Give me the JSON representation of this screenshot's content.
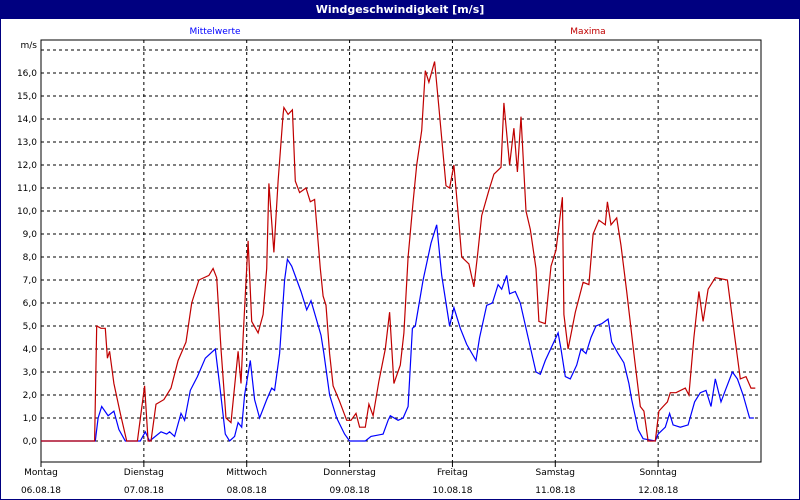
{
  "window": {
    "title": "Windgeschwindigkeit [m/s]"
  },
  "chart_data": {
    "type": "line",
    "title": "Windgeschwindigkeit [m/s]",
    "ylabel": "m/s",
    "ylim": [
      -0.9,
      17.5
    ],
    "yticks": [
      "0,0",
      "1,0",
      "2,0",
      "3,0",
      "4,0",
      "5,0",
      "6,0",
      "7,0",
      "8,0",
      "9,0",
      "10,0",
      "11,0",
      "12,0",
      "13,0",
      "14,0",
      "15,0",
      "16,0"
    ],
    "xlim": [
      "06.08.18 00:00",
      "13.08.18 00:00"
    ],
    "xticks": [
      {
        "day": "Montag",
        "date": "06.08.18"
      },
      {
        "day": "Dienstag",
        "date": "07.08.18"
      },
      {
        "day": "Mittwoch",
        "date": "08.08.18"
      },
      {
        "day": "Donnerstag",
        "date": "09.08.18"
      },
      {
        "day": "Freitag",
        "date": "10.08.18"
      },
      {
        "day": "Samstag",
        "date": "11.08.18"
      },
      {
        "day": "Sonntag",
        "date": "12.08.18"
      }
    ],
    "grid": true,
    "legend_placement": "top",
    "series": [
      {
        "name": "Mittelwerte",
        "color": "#0000ff",
        "points": [
          [
            "06.08.18 00:00",
            0
          ],
          [
            "06.08.18 12:40",
            0
          ],
          [
            "06.08.18 13:20",
            1.0
          ],
          [
            "06.08.18 14:10",
            1.5
          ],
          [
            "06.08.18 15:40",
            1.1
          ],
          [
            "06.08.18 17:00",
            1.3
          ],
          [
            "06.08.18 18:10",
            0.5
          ],
          [
            "06.08.18 19:40",
            0
          ],
          [
            "06.08.18 23:10",
            0
          ],
          [
            "07.08.18 00:20",
            0.4
          ],
          [
            "07.08.18 01:20",
            0
          ],
          [
            "07.08.18 04:00",
            0.4
          ],
          [
            "07.08.18 05:20",
            0.3
          ],
          [
            "07.08.18 06:00",
            0.4
          ],
          [
            "07.08.18 07:10",
            0.2
          ],
          [
            "07.08.18 08:40",
            1.2
          ],
          [
            "07.08.18 09:30",
            0.9
          ],
          [
            "07.08.18 10:50",
            2.2
          ],
          [
            "07.08.18 12:30",
            2.8
          ],
          [
            "07.08.18 14:20",
            3.6
          ],
          [
            "07.08.18 16:40",
            4.0
          ],
          [
            "07.08.18 17:50",
            2.2
          ],
          [
            "07.08.18 19:00",
            0.3
          ],
          [
            "07.08.18 20:00",
            0
          ],
          [
            "07.08.18 21:10",
            0.2
          ],
          [
            "07.08.18 22:00",
            0.8
          ],
          [
            "07.08.18 22:50",
            0.6
          ],
          [
            "07.08.18 23:30",
            2.0
          ],
          [
            "08.08.18 00:50",
            3.5
          ],
          [
            "08.08.18 01:50",
            1.8
          ],
          [
            "08.08.18 03:00",
            1.0
          ],
          [
            "08.08.18 04:40",
            1.8
          ],
          [
            "08.08.18 05:50",
            2.3
          ],
          [
            "08.08.18 06:30",
            2.2
          ],
          [
            "08.08.18 07:40",
            3.8
          ],
          [
            "08.08.18 08:50",
            7.0
          ],
          [
            "08.08.18 09:30",
            7.9
          ],
          [
            "08.08.18 10:30",
            7.6
          ],
          [
            "08.08.18 12:40",
            6.5
          ],
          [
            "08.08.18 14:00",
            5.7
          ],
          [
            "08.08.18 15:00",
            6.1
          ],
          [
            "08.08.18 17:20",
            4.6
          ],
          [
            "08.08.18 18:00",
            3.8
          ],
          [
            "08.08.18 19:20",
            2.0
          ],
          [
            "08.08.18 21:00",
            1.0
          ],
          [
            "08.08.18 22:50",
            0.3
          ],
          [
            "09.08.18 00:00",
            0
          ],
          [
            "09.08.18 03:40",
            0
          ],
          [
            "09.08.18 05:00",
            0.2
          ],
          [
            "09.08.18 07:50",
            0.3
          ],
          [
            "09.08.18 09:00",
            0.9
          ],
          [
            "09.08.18 09:30",
            1.1
          ],
          [
            "09.08.18 11:20",
            0.9
          ],
          [
            "09.08.18 12:30",
            1.0
          ],
          [
            "09.08.18 13:40",
            1.5
          ],
          [
            "09.08.18 14:40",
            4.9
          ],
          [
            "09.08.18 15:20",
            5.0
          ],
          [
            "09.08.18 17:10",
            7.0
          ],
          [
            "09.08.18 19:00",
            8.6
          ],
          [
            "09.08.18 20:20",
            9.4
          ],
          [
            "09.08.18 21:30",
            7.2
          ],
          [
            "09.08.18 22:30",
            6.0
          ],
          [
            "09.08.18 23:20",
            5.0
          ],
          [
            "10.08.18 00:20",
            5.8
          ],
          [
            "10.08.18 01:50",
            4.9
          ],
          [
            "10.08.18 03:20",
            4.2
          ],
          [
            "10.08.18 05:30",
            3.5
          ],
          [
            "10.08.18 06:20",
            4.5
          ],
          [
            "10.08.18 08:00",
            5.9
          ],
          [
            "10.08.18 09:20",
            6.0
          ],
          [
            "10.08.18 10:40",
            6.8
          ],
          [
            "10.08.18 11:30",
            6.6
          ],
          [
            "10.08.18 12:40",
            7.2
          ],
          [
            "10.08.18 13:20",
            6.4
          ],
          [
            "10.08.18 14:40",
            6.5
          ],
          [
            "10.08.18 15:50",
            6.0
          ],
          [
            "10.08.18 17:40",
            4.5
          ],
          [
            "10.08.18 19:30",
            3.0
          ],
          [
            "10.08.18 20:30",
            2.9
          ],
          [
            "10.08.18 21:40",
            3.5
          ],
          [
            "11.08.18 00:40",
            4.7
          ],
          [
            "11.08.18 01:20",
            4.0
          ],
          [
            "11.08.18 02:20",
            2.8
          ],
          [
            "11.08.18 03:30",
            2.7
          ],
          [
            "11.08.18 05:00",
            3.3
          ],
          [
            "11.08.18 06:00",
            4.0
          ],
          [
            "11.08.18 07:10",
            3.8
          ],
          [
            "11.08.18 08:20",
            4.5
          ],
          [
            "11.08.18 09:30",
            5.0
          ],
          [
            "11.08.18 10:50",
            5.1
          ],
          [
            "11.08.18 12:20",
            5.3
          ],
          [
            "11.08.18 13:10",
            4.3
          ],
          [
            "11.08.18 14:40",
            3.8
          ],
          [
            "11.08.18 16:00",
            3.4
          ],
          [
            "11.08.18 17:10",
            2.5
          ],
          [
            "11.08.18 17:50",
            1.8
          ],
          [
            "11.08.18 19:20",
            0.5
          ],
          [
            "11.08.18 20:30",
            0.1
          ],
          [
            "11.08.18 23:20",
            0
          ],
          [
            "12.08.18 00:00",
            0.3
          ],
          [
            "12.08.18 01:40",
            0.6
          ],
          [
            "12.08.18 02:40",
            1.2
          ],
          [
            "12.08.18 03:30",
            0.7
          ],
          [
            "12.08.18 05:10",
            0.6
          ],
          [
            "12.08.18 07:00",
            0.7
          ],
          [
            "12.08.18 08:30",
            1.7
          ],
          [
            "12.08.18 09:50",
            2.1
          ],
          [
            "12.08.18 11:10",
            2.2
          ],
          [
            "12.08.18 12:20",
            1.5
          ],
          [
            "12.08.18 13:20",
            2.7
          ],
          [
            "12.08.18 14:40",
            1.7
          ],
          [
            "12.08.18 15:40",
            2.2
          ],
          [
            "12.08.18 17:20",
            3.0
          ],
          [
            "12.08.18 18:30",
            2.7
          ],
          [
            "12.08.18 19:50",
            2.0
          ],
          [
            "12.08.18 21:20",
            1.0
          ],
          [
            "12.08.18 22:20",
            1.0
          ]
        ]
      },
      {
        "name": "Maxima",
        "color": "#c00000",
        "points": [
          [
            "06.08.18 00:00",
            0
          ],
          [
            "06.08.18 12:30",
            0
          ],
          [
            "06.08.18 13:00",
            5.0
          ],
          [
            "06.08.18 14:00",
            4.9
          ],
          [
            "06.08.18 15:00",
            4.9
          ],
          [
            "06.08.18 15:30",
            3.6
          ],
          [
            "06.08.18 16:00",
            3.9
          ],
          [
            "06.08.18 17:00",
            2.5
          ],
          [
            "06.08.18 18:30",
            1.2
          ],
          [
            "06.08.18 20:00",
            0
          ],
          [
            "06.08.18 22:30",
            0
          ],
          [
            "07.08.18 00:10",
            2.4
          ],
          [
            "07.08.18 01:00",
            0
          ],
          [
            "07.08.18 01:40",
            0
          ],
          [
            "07.08.18 02:50",
            1.6
          ],
          [
            "07.08.18 04:40",
            1.8
          ],
          [
            "07.08.18 06:20",
            2.3
          ],
          [
            "07.08.18 08:00",
            3.5
          ],
          [
            "07.08.18 09:50",
            4.3
          ],
          [
            "07.08.18 11:10",
            6.0
          ],
          [
            "07.08.18 12:50",
            7.0
          ],
          [
            "07.08.18 15:10",
            7.2
          ],
          [
            "07.08.18 16:10",
            7.5
          ],
          [
            "07.08.18 17:00",
            7.1
          ],
          [
            "07.08.18 18:00",
            4.0
          ],
          [
            "07.08.18 19:10",
            1.0
          ],
          [
            "07.08.18 20:20",
            0.8
          ],
          [
            "07.08.18 22:00",
            3.9
          ],
          [
            "07.08.18 22:40",
            2.5
          ],
          [
            "07.08.18 23:10",
            4.5
          ],
          [
            "08.08.18 00:20",
            8.7
          ],
          [
            "08.08.18 01:10",
            5.2
          ],
          [
            "08.08.18 02:40",
            4.7
          ],
          [
            "08.08.18 03:50",
            5.5
          ],
          [
            "08.08.18 04:40",
            7.5
          ],
          [
            "08.08.18 05:10",
            11.2
          ],
          [
            "08.08.18 06:20",
            8.2
          ],
          [
            "08.08.18 07:20",
            11.3
          ],
          [
            "08.08.18 08:30",
            14.2
          ],
          [
            "08.08.18 08:40",
            14.5
          ],
          [
            "08.08.18 09:40",
            14.2
          ],
          [
            "08.08.18 10:40",
            14.4
          ],
          [
            "08.08.18 11:20",
            11.3
          ],
          [
            "08.08.18 12:20",
            10.8
          ],
          [
            "08.08.18 13:50",
            11.0
          ],
          [
            "08.08.18 14:50",
            10.4
          ],
          [
            "08.08.18 15:50",
            10.5
          ],
          [
            "08.08.18 17:10",
            7.5
          ],
          [
            "08.08.18 17:50",
            6.3
          ],
          [
            "08.08.18 18:30",
            5.9
          ],
          [
            "08.08.18 19:20",
            3.8
          ],
          [
            "08.08.18 20:10",
            2.4
          ],
          [
            "08.08.18 21:30",
            1.8
          ],
          [
            "08.08.18 23:20",
            0.9
          ],
          [
            "09.08.18 00:20",
            0.9
          ],
          [
            "09.08.18 01:30",
            1.2
          ],
          [
            "09.08.18 02:20",
            0.6
          ],
          [
            "09.08.18 03:40",
            0.6
          ],
          [
            "09.08.18 04:30",
            1.6
          ],
          [
            "09.08.18 05:30",
            1.1
          ],
          [
            "09.08.18 06:50",
            2.6
          ],
          [
            "09.08.18 08:20",
            4.0
          ],
          [
            "09.08.18 09:20",
            5.6
          ],
          [
            "09.08.18 10:20",
            2.5
          ],
          [
            "09.08.18 11:50",
            3.3
          ],
          [
            "09.08.18 12:40",
            4.7
          ],
          [
            "09.08.18 13:40",
            8.0
          ],
          [
            "09.08.18 14:50",
            10.4
          ],
          [
            "09.08.18 15:40",
            12.0
          ],
          [
            "09.08.18 16:50",
            13.5
          ],
          [
            "09.08.18 17:40",
            16.1
          ],
          [
            "09.08.18 18:30",
            15.6
          ],
          [
            "09.08.18 19:50",
            16.5
          ],
          [
            "09.08.18 20:50",
            14.5
          ],
          [
            "09.08.18 22:30",
            11.1
          ],
          [
            "09.08.18 23:20",
            11.0
          ],
          [
            "10.08.18 00:20",
            12.0
          ],
          [
            "10.08.18 01:30",
            9.5
          ],
          [
            "10.08.18 02:10",
            8.0
          ],
          [
            "10.08.18 03:50",
            7.7
          ],
          [
            "10.08.18 05:00",
            6.7
          ],
          [
            "10.08.18 06:00",
            8.3
          ],
          [
            "10.08.18 06:50",
            9.8
          ],
          [
            "10.08.18 08:30",
            10.9
          ],
          [
            "10.08.18 09:40",
            11.6
          ],
          [
            "10.08.18 11:20",
            11.9
          ],
          [
            "10.08.18 12:00",
            14.7
          ],
          [
            "10.08.18 13:20",
            12.0
          ],
          [
            "10.08.18 14:20",
            13.6
          ],
          [
            "10.08.18 15:10",
            11.7
          ],
          [
            "10.08.18 16:00",
            14.1
          ],
          [
            "10.08.18 17:10",
            10.0
          ],
          [
            "10.08.18 18:10",
            9.2
          ],
          [
            "10.08.18 19:30",
            7.5
          ],
          [
            "10.08.18 20:10",
            5.2
          ],
          [
            "10.08.18 21:40",
            5.1
          ],
          [
            "10.08.18 23:00",
            7.6
          ],
          [
            "11.08.18 00:10",
            8.3
          ],
          [
            "11.08.18 01:40",
            10.6
          ],
          [
            "11.08.18 02:00",
            5.5
          ],
          [
            "11.08.18 03:00",
            4.0
          ],
          [
            "11.08.18 04:40",
            5.6
          ],
          [
            "11.08.18 06:30",
            6.9
          ],
          [
            "11.08.18 07:50",
            6.8
          ],
          [
            "11.08.18 08:50",
            9.0
          ],
          [
            "11.08.18 10:10",
            9.6
          ],
          [
            "11.08.18 11:40",
            9.4
          ],
          [
            "11.08.18 12:10",
            10.4
          ],
          [
            "11.08.18 13:00",
            9.4
          ],
          [
            "11.08.18 14:20",
            9.7
          ],
          [
            "11.08.18 15:20",
            8.5
          ],
          [
            "11.08.18 16:40",
            6.5
          ],
          [
            "11.08.18 18:20",
            3.8
          ],
          [
            "11.08.18 19:50",
            1.5
          ],
          [
            "11.08.18 20:40",
            1.3
          ],
          [
            "11.08.18 21:40",
            0
          ],
          [
            "11.08.18 23:20",
            0
          ],
          [
            "12.08.18 00:10",
            1.3
          ],
          [
            "12.08.18 01:10",
            1.5
          ],
          [
            "12.08.18 02:10",
            1.7
          ],
          [
            "12.08.18 02:50",
            2.1
          ],
          [
            "12.08.18 04:10",
            2.1
          ],
          [
            "12.08.18 06:20",
            2.3
          ],
          [
            "12.08.18 07:10",
            2.0
          ],
          [
            "12.08.18 08:20",
            4.5
          ],
          [
            "12.08.18 09:30",
            6.5
          ],
          [
            "12.08.18 10:30",
            5.2
          ],
          [
            "12.08.18 11:40",
            6.6
          ],
          [
            "12.08.18 13:20",
            7.1
          ],
          [
            "12.08.18 16:10",
            7.0
          ],
          [
            "12.08.18 17:40",
            4.8
          ],
          [
            "12.08.18 19:10",
            2.7
          ],
          [
            "12.08.18 20:30",
            2.8
          ],
          [
            "12.08.18 21:40",
            2.3
          ],
          [
            "12.08.18 22:40",
            2.3
          ]
        ]
      }
    ]
  }
}
